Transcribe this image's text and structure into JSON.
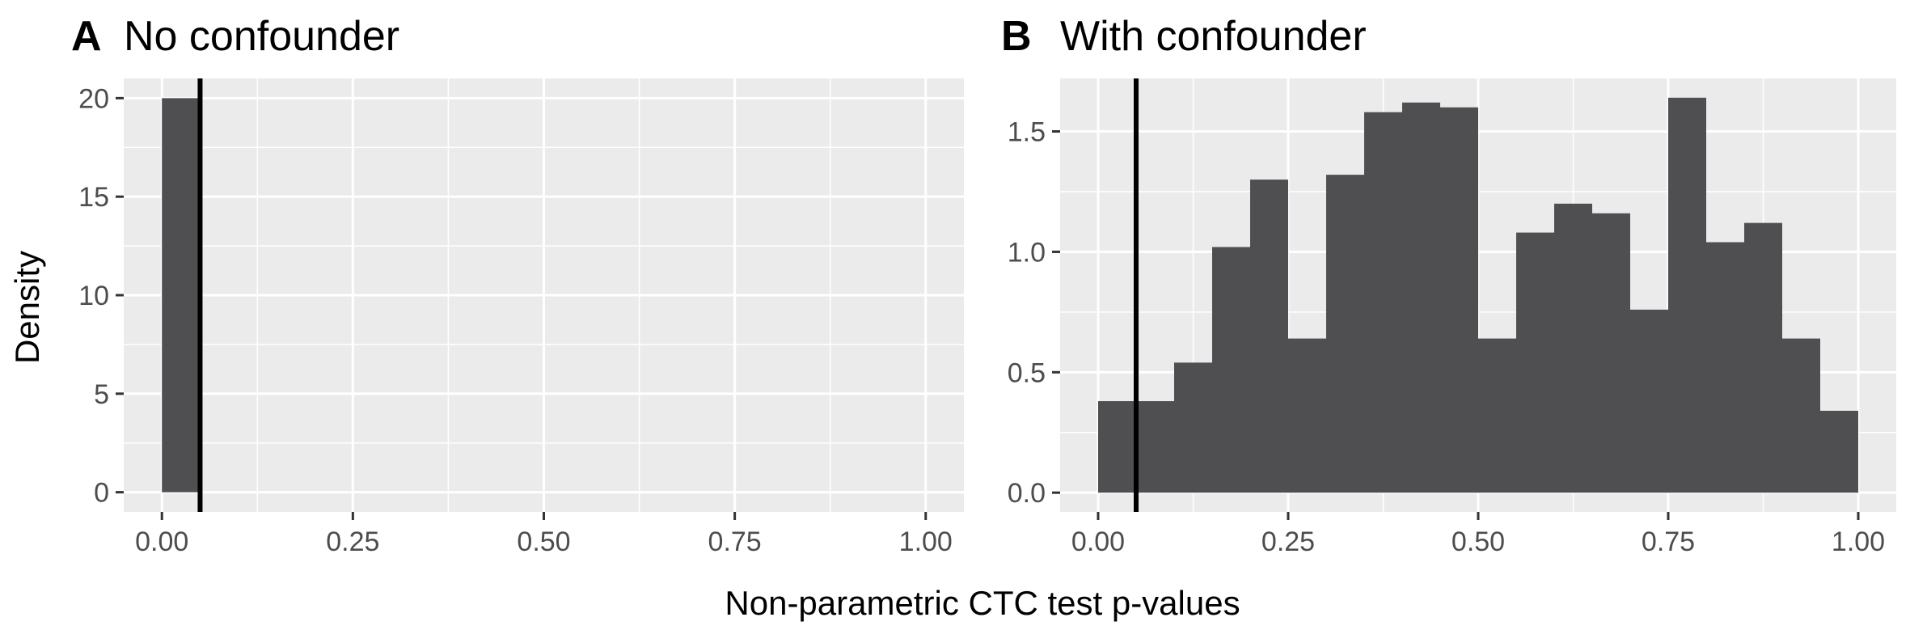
{
  "chart_data": {
    "type": "histogram",
    "xlabel": "Non-parametric CTC test p-values",
    "ylabel": "Density",
    "reference_line_x": 0.05,
    "bin_width": 0.05,
    "bar_color": "#4f4e50",
    "panel_background": "#ebebeb",
    "grid": true,
    "x_ticks": [
      0,
      0.25,
      0.5,
      0.75,
      1
    ],
    "x_tick_labels": [
      "0.00",
      "0.25",
      "0.50",
      "0.75",
      "1.00"
    ],
    "xlim": [
      -0.05,
      1.05
    ],
    "panels": [
      {
        "letter": "A",
        "title": "No confounder",
        "ylim": [
          -1,
          21
        ],
        "y_ticks": [
          0,
          5,
          10,
          15,
          20
        ],
        "y_tick_labels": [
          "0",
          "5",
          "10",
          "15",
          "20"
        ],
        "bins": [
          {
            "x0": 0.0,
            "x1": 0.05,
            "density": 20
          }
        ]
      },
      {
        "letter": "B",
        "title": "With confounder",
        "ylim": [
          -0.08,
          1.72
        ],
        "y_ticks": [
          0,
          0.5,
          1.0,
          1.5
        ],
        "y_tick_labels": [
          "0.0",
          "0.5",
          "1.0",
          "1.5"
        ],
        "bins": [
          {
            "x0": 0.0,
            "x1": 0.05,
            "density": 0.38
          },
          {
            "x0": 0.05,
            "x1": 0.1,
            "density": 0.38
          },
          {
            "x0": 0.1,
            "x1": 0.15,
            "density": 0.54
          },
          {
            "x0": 0.15,
            "x1": 0.2,
            "density": 1.02
          },
          {
            "x0": 0.2,
            "x1": 0.25,
            "density": 1.3
          },
          {
            "x0": 0.25,
            "x1": 0.3,
            "density": 0.64
          },
          {
            "x0": 0.3,
            "x1": 0.35,
            "density": 1.32
          },
          {
            "x0": 0.35,
            "x1": 0.4,
            "density": 1.58
          },
          {
            "x0": 0.4,
            "x1": 0.45,
            "density": 1.62
          },
          {
            "x0": 0.45,
            "x1": 0.5,
            "density": 1.6
          },
          {
            "x0": 0.5,
            "x1": 0.55,
            "density": 0.64
          },
          {
            "x0": 0.55,
            "x1": 0.6,
            "density": 1.08
          },
          {
            "x0": 0.6,
            "x1": 0.65,
            "density": 1.2
          },
          {
            "x0": 0.65,
            "x1": 0.7,
            "density": 1.16
          },
          {
            "x0": 0.7,
            "x1": 0.75,
            "density": 0.76
          },
          {
            "x0": 0.75,
            "x1": 0.8,
            "density": 1.64
          },
          {
            "x0": 0.8,
            "x1": 0.85,
            "density": 1.04
          },
          {
            "x0": 0.85,
            "x1": 0.9,
            "density": 1.12
          },
          {
            "x0": 0.9,
            "x1": 0.95,
            "density": 0.64
          },
          {
            "x0": 0.95,
            "x1": 1.0,
            "density": 0.34
          }
        ]
      }
    ]
  }
}
